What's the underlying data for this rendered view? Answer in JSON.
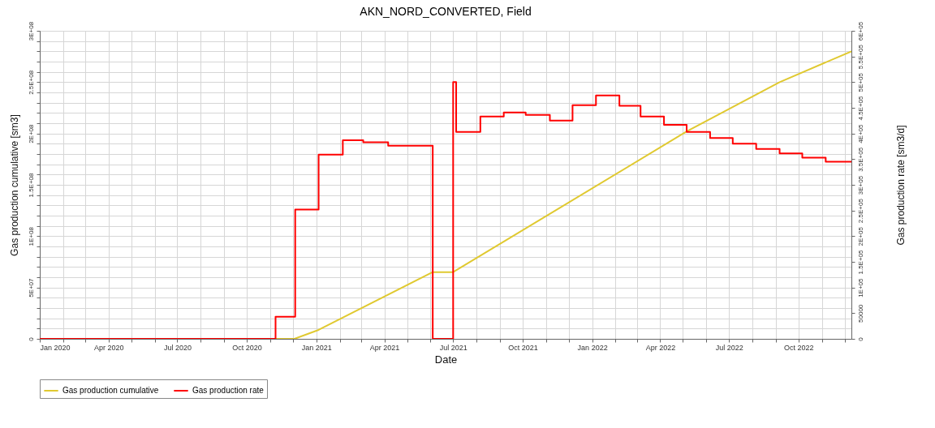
{
  "chart_data": {
    "type": "line",
    "title": "AKN_NORD_CONVERTED, Field",
    "xlabel": "Date",
    "ylabel": "Gas production cumulative [sm3]",
    "y2label": "Gas production rate [sm3/d]",
    "xlim": [
      "2020-01-01",
      "2022-12-10"
    ],
    "xticks": [
      {
        "value": "2020-01-01",
        "label": "Jan 2020"
      },
      {
        "value": "2020-02-01",
        "label": null
      },
      {
        "value": "2020-03-01",
        "label": null
      },
      {
        "value": "2020-04-01",
        "label": "Apr 2020"
      },
      {
        "value": "2020-05-01",
        "label": null
      },
      {
        "value": "2020-06-01",
        "label": null
      },
      {
        "value": "2020-07-01",
        "label": "Jul 2020"
      },
      {
        "value": "2020-08-01",
        "label": null
      },
      {
        "value": "2020-09-01",
        "label": null
      },
      {
        "value": "2020-10-01",
        "label": "Oct 2020"
      },
      {
        "value": "2020-11-01",
        "label": null
      },
      {
        "value": "2020-12-01",
        "label": null
      },
      {
        "value": "2021-01-01",
        "label": "Jan 2021"
      },
      {
        "value": "2021-02-01",
        "label": null
      },
      {
        "value": "2021-03-01",
        "label": null
      },
      {
        "value": "2021-04-01",
        "label": "Apr 2021"
      },
      {
        "value": "2021-05-01",
        "label": null
      },
      {
        "value": "2021-06-01",
        "label": null
      },
      {
        "value": "2021-07-01",
        "label": "Jul 2021"
      },
      {
        "value": "2021-08-01",
        "label": null
      },
      {
        "value": "2021-09-01",
        "label": null
      },
      {
        "value": "2021-10-01",
        "label": "Oct 2021"
      },
      {
        "value": "2021-11-01",
        "label": null
      },
      {
        "value": "2021-12-01",
        "label": null
      },
      {
        "value": "2022-01-01",
        "label": "Jan 2022"
      },
      {
        "value": "2022-02-01",
        "label": null
      },
      {
        "value": "2022-03-01",
        "label": null
      },
      {
        "value": "2022-04-01",
        "label": "Apr 2022"
      },
      {
        "value": "2022-05-01",
        "label": null
      },
      {
        "value": "2022-06-01",
        "label": null
      },
      {
        "value": "2022-07-01",
        "label": "Jul 2022"
      },
      {
        "value": "2022-08-01",
        "label": null
      },
      {
        "value": "2022-09-01",
        "label": null
      },
      {
        "value": "2022-10-01",
        "label": "Oct 2022"
      },
      {
        "value": "2022-11-01",
        "label": null
      },
      {
        "value": "2022-12-01",
        "label": null
      }
    ],
    "ylim": [
      0,
      300000000
    ],
    "yticks": [
      0,
      {
        "value": 10000000,
        "label": null
      },
      {
        "value": 20000000,
        "label": null
      },
      {
        "value": 30000000,
        "label": null
      },
      {
        "value": 40000000,
        "label": null
      },
      {
        "value": 50000000,
        "label": "5E+07"
      },
      {
        "value": 60000000,
        "label": null
      },
      {
        "value": 70000000,
        "label": null
      },
      {
        "value": 80000000,
        "label": null
      },
      {
        "value": 90000000,
        "label": null
      },
      {
        "value": 100000000,
        "label": "1E+08"
      },
      {
        "value": 110000000,
        "label": null
      },
      {
        "value": 120000000,
        "label": null
      },
      {
        "value": 130000000,
        "label": null
      },
      {
        "value": 140000000,
        "label": null
      },
      {
        "value": 150000000,
        "label": "1.5E+08"
      },
      {
        "value": 160000000,
        "label": null
      },
      {
        "value": 170000000,
        "label": null
      },
      {
        "value": 180000000,
        "label": null
      },
      {
        "value": 190000000,
        "label": null
      },
      {
        "value": 200000000,
        "label": "2E+08"
      },
      {
        "value": 210000000,
        "label": null
      },
      {
        "value": 220000000,
        "label": null
      },
      {
        "value": 230000000,
        "label": null
      },
      {
        "value": 240000000,
        "label": null
      },
      {
        "value": 250000000,
        "label": "2.5E+08"
      },
      {
        "value": 260000000,
        "label": null
      },
      {
        "value": 270000000,
        "label": null
      },
      {
        "value": 280000000,
        "label": null
      },
      {
        "value": 290000000,
        "label": null
      },
      {
        "value": 300000000,
        "label": "3E+08"
      }
    ],
    "y2lim": [
      0,
      600000
    ],
    "y2ticks": [
      0,
      50000,
      {
        "value": 100000,
        "label": "1E+05"
      },
      {
        "value": 150000,
        "label": "1.5E+05"
      },
      {
        "value": 200000,
        "label": "2E+05"
      },
      {
        "value": 250000,
        "label": "2.5E+05"
      },
      {
        "value": 300000,
        "label": "3E+05"
      },
      {
        "value": 350000,
        "label": "3.5E+05"
      },
      {
        "value": 400000,
        "label": "4E+05"
      },
      {
        "value": 450000,
        "label": "4.5E+05"
      },
      {
        "value": 500000,
        "label": "5E+05"
      },
      {
        "value": 550000,
        "label": "5.5E+05"
      },
      {
        "value": 600000,
        "label": "6E+05"
      }
    ],
    "grid": true,
    "legend": "bottom",
    "series": [
      {
        "name": "Gas production cumulative",
        "type": "line",
        "color": "#e0c930",
        "x": [
          "2020-01-01",
          "2020-12-03",
          "2021-01-04",
          "2021-06-04",
          "2021-07-01",
          "2022-05-06",
          "2022-09-06",
          "2022-12-10"
        ],
        "values": [
          0,
          0,
          8700000,
          65000000,
          65000000,
          202000000,
          250000000,
          280000000
        ]
      },
      {
        "name": "Gas production rate",
        "type": "step",
        "axis": "y2",
        "color": "#ff0000",
        "x": [
          "2020-01-01",
          "2020-11-08",
          "2020-12-04",
          "2021-01-04",
          "2021-02-05",
          "2021-03-04",
          "2021-04-06",
          "2021-06-04",
          "2021-07-01",
          "2021-07-05",
          "2021-08-06",
          "2021-09-06",
          "2021-10-05",
          "2021-11-06",
          "2021-12-06",
          "2022-01-06",
          "2022-02-06",
          "2022-03-06",
          "2022-04-06",
          "2022-05-06",
          "2022-06-06",
          "2022-07-06",
          "2022-08-06",
          "2022-09-06",
          "2022-10-06",
          "2022-11-06",
          "2022-12-10"
        ],
        "values": [
          0,
          43000,
          252000,
          359000,
          387000,
          383000,
          376000,
          0,
          500000,
          403000,
          433000,
          441000,
          436000,
          425000,
          455000,
          474000,
          454000,
          433000,
          417000,
          403000,
          391000,
          380000,
          370000,
          361000,
          353000,
          345000,
          345000
        ]
      }
    ]
  }
}
